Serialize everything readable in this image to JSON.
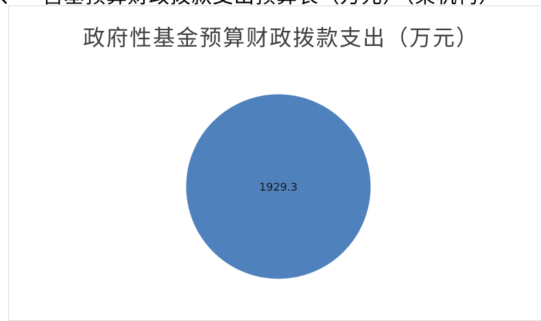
{
  "header_strip": {
    "text": "、一营基预算财政拨款支出预算表（万元）（某机构）"
  },
  "chart_data": {
    "type": "pie",
    "title": "政府性基金预算财政拨款支出（万元）",
    "slices": [
      {
        "label": "",
        "value": 1929.3,
        "data_label": "1929.3",
        "color": "#4f81bd"
      }
    ],
    "legend": "none",
    "grid": false
  }
}
